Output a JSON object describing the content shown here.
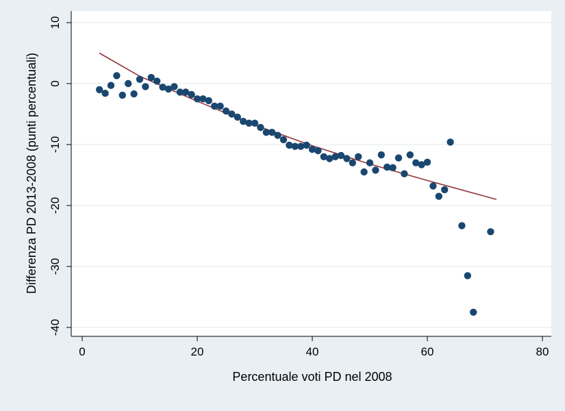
{
  "chart_data": {
    "type": "scatter",
    "xlabel": "Percentuale voti PD nel 2008",
    "ylabel": "Differenza PD 2013-2008 (punti percentuali)",
    "xlim": [
      0,
      80
    ],
    "ylim": [
      -40,
      10
    ],
    "xticks": [
      0,
      20,
      40,
      60,
      80
    ],
    "yticks": [
      10,
      0,
      -10,
      -20,
      -30,
      -40
    ],
    "grid": "horizontal",
    "legend": "none",
    "colors": {
      "background": "#e9eff3",
      "plot_area": "#ffffff",
      "grid": "#eaf2f3",
      "marker": "#1a476f",
      "fit_line": "#90353b"
    },
    "points": [
      [
        3,
        -1.0
      ],
      [
        4,
        -1.6
      ],
      [
        5,
        -0.3
      ],
      [
        6,
        1.3
      ],
      [
        7,
        -1.9
      ],
      [
        8,
        0.0
      ],
      [
        9,
        -1.7
      ],
      [
        10,
        0.7
      ],
      [
        11,
        -0.5
      ],
      [
        12,
        1.0
      ],
      [
        13,
        0.4
      ],
      [
        14,
        -0.6
      ],
      [
        15,
        -0.9
      ],
      [
        16,
        -0.5
      ],
      [
        17,
        -1.4
      ],
      [
        18,
        -1.4
      ],
      [
        19,
        -1.8
      ],
      [
        20,
        -2.5
      ],
      [
        21,
        -2.5
      ],
      [
        22,
        -2.8
      ],
      [
        23,
        -3.7
      ],
      [
        24,
        -3.7
      ],
      [
        25,
        -4.5
      ],
      [
        26,
        -5.0
      ],
      [
        27,
        -5.5
      ],
      [
        28,
        -6.2
      ],
      [
        29,
        -6.5
      ],
      [
        30,
        -6.5
      ],
      [
        31,
        -7.2
      ],
      [
        32,
        -8.0
      ],
      [
        33,
        -8.0
      ],
      [
        34,
        -8.5
      ],
      [
        35,
        -9.2
      ],
      [
        36,
        -10.1
      ],
      [
        37,
        -10.3
      ],
      [
        38,
        -10.3
      ],
      [
        39,
        -10.1
      ],
      [
        40,
        -10.8
      ],
      [
        41,
        -11.0
      ],
      [
        42,
        -12.0
      ],
      [
        43,
        -12.3
      ],
      [
        44,
        -12.0
      ],
      [
        45,
        -11.8
      ],
      [
        46,
        -12.3
      ],
      [
        47,
        -13.0
      ],
      [
        48,
        -12.0
      ],
      [
        49,
        -14.5
      ],
      [
        50,
        -13.0
      ],
      [
        51,
        -14.2
      ],
      [
        52,
        -11.7
      ],
      [
        53,
        -13.7
      ],
      [
        54,
        -13.8
      ],
      [
        55,
        -12.2
      ],
      [
        56,
        -14.8
      ],
      [
        57,
        -11.7
      ],
      [
        58,
        -13.0
      ],
      [
        59,
        -13.3
      ],
      [
        60,
        -12.9
      ],
      [
        61,
        -16.8
      ],
      [
        62,
        -18.5
      ],
      [
        63,
        -17.4
      ],
      [
        64,
        -9.6
      ],
      [
        66,
        -23.3
      ],
      [
        67,
        -31.5
      ],
      [
        68,
        -37.5
      ],
      [
        71,
        -24.3
      ]
    ],
    "fit_line": [
      [
        3,
        5.0
      ],
      [
        10,
        1.2
      ],
      [
        20,
        -2.9
      ],
      [
        30,
        -6.8
      ],
      [
        40,
        -10.2
      ],
      [
        50,
        -13.2
      ],
      [
        60,
        -15.9
      ],
      [
        72,
        -19.0
      ]
    ]
  }
}
